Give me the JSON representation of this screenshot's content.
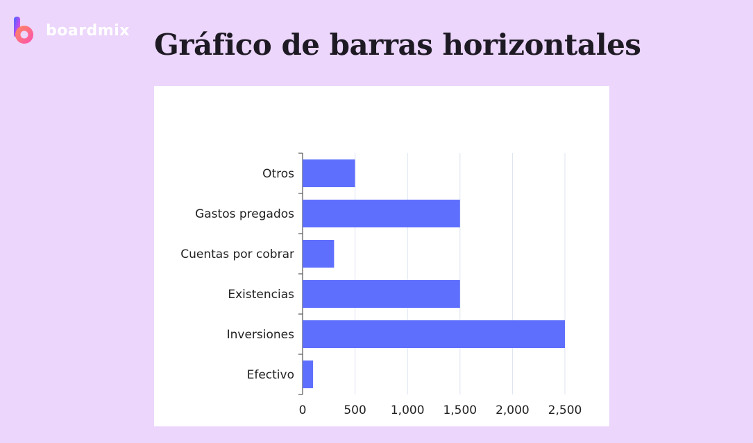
{
  "brand": {
    "name": "boardmix",
    "logo_icon": "boardmix-logo-icon"
  },
  "page": {
    "title": "Gráfico de barras horizontales"
  },
  "chart_data": {
    "type": "bar",
    "orientation": "horizontal",
    "title": "Gráfico de barras horizontales",
    "categories": [
      "Otros",
      "Gastos pregados",
      "Cuentas por cobrar",
      "Existencias",
      "Inversiones",
      "Efectivo"
    ],
    "values": [
      500,
      1500,
      300,
      1500,
      2500,
      100
    ],
    "xlabel": "",
    "ylabel": "",
    "xlim": [
      0,
      2500
    ],
    "x_ticks": [
      "0",
      "500",
      "1,000",
      "1,500",
      "2,000",
      "2,500"
    ],
    "x_tick_values": [
      0,
      500,
      1000,
      1500,
      2000,
      2500
    ],
    "grid": true,
    "legend": "none",
    "bar_color": "#5f6ffd"
  }
}
